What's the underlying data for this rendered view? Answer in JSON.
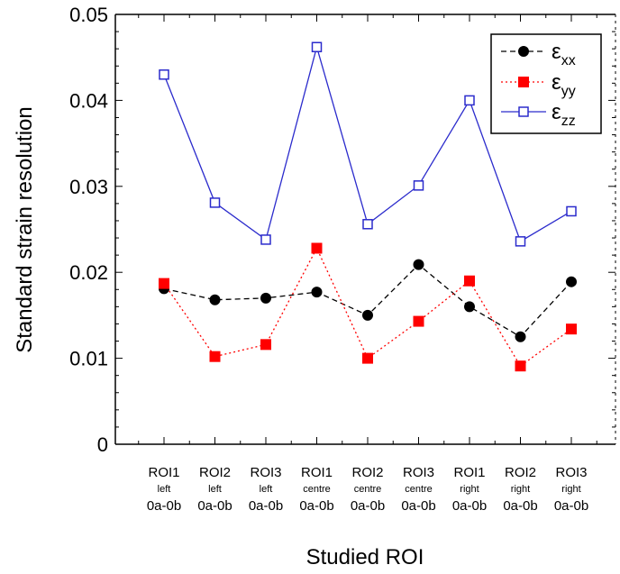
{
  "chart_data": {
    "type": "line",
    "xlabel": "Studied ROI",
    "ylabel": "Standard strain resolution",
    "ylim": [
      0,
      0.05
    ],
    "yticks": [
      "0",
      "0.01",
      "0.02",
      "0.03",
      "0.04",
      "0.05"
    ],
    "ytick_values": [
      0,
      0.01,
      0.02,
      0.03,
      0.04,
      0.05
    ],
    "grid": false,
    "legend_position": "top-right",
    "categories": [
      {
        "line1": "ROI1",
        "line2": "left",
        "line3": "0a-0b"
      },
      {
        "line1": "ROI2",
        "line2": "left",
        "line3": "0a-0b"
      },
      {
        "line1": "ROI3",
        "line2": "left",
        "line3": "0a-0b"
      },
      {
        "line1": "ROI1",
        "line2": "centre",
        "line3": "0a-0b"
      },
      {
        "line1": "ROI2",
        "line2": "centre",
        "line3": "0a-0b"
      },
      {
        "line1": "ROI3",
        "line2": "centre",
        "line3": "0a-0b"
      },
      {
        "line1": "ROI1",
        "line2": "right",
        "line3": "0a-0b"
      },
      {
        "line1": "ROI2",
        "line2": "right",
        "line3": "0a-0b"
      },
      {
        "line1": "ROI3",
        "line2": "right",
        "line3": "0a-0b"
      }
    ],
    "series": [
      {
        "name": "εxx",
        "legend_main": "ε",
        "legend_sub": "xx",
        "color": "#000000",
        "dash": "dashed",
        "marker": "filled-circle",
        "values": [
          0.0181,
          0.0168,
          0.017,
          0.0177,
          0.015,
          0.0209,
          0.016,
          0.0125,
          0.0189
        ]
      },
      {
        "name": "εyy",
        "legend_main": "ε",
        "legend_sub": "yy",
        "color": "#ff0000",
        "dash": "dotted",
        "marker": "filled-square",
        "values": [
          0.0187,
          0.0102,
          0.0116,
          0.0228,
          0.01,
          0.0143,
          0.019,
          0.0091,
          0.0134
        ]
      },
      {
        "name": "εzz",
        "legend_main": "ε",
        "legend_sub": "zz",
        "color": "#2b2bcc",
        "dash": "solid",
        "marker": "open-square",
        "values": [
          0.043,
          0.0281,
          0.0238,
          0.0462,
          0.0256,
          0.0301,
          0.04,
          0.0236,
          0.0271
        ]
      }
    ]
  }
}
